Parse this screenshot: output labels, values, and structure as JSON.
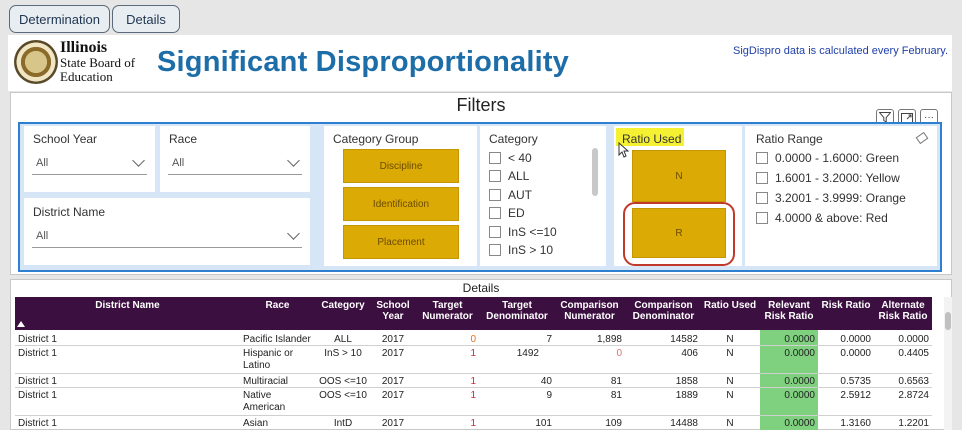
{
  "tabs": [
    "Determination",
    "Details"
  ],
  "header": {
    "logo_lines": [
      "Illinois",
      "State Board of",
      "Education"
    ],
    "title": "Significant Disproportionality",
    "note": "SigDispro data is calculated every February."
  },
  "filters": {
    "title": "Filters",
    "school_year": {
      "label": "School Year",
      "value": "All"
    },
    "race": {
      "label": "Race",
      "value": "All"
    },
    "district_name": {
      "label": "District Name",
      "value": "All"
    },
    "category_group": {
      "label": "Category Group",
      "buttons": [
        "Discipline",
        "Identification",
        "Placement"
      ]
    },
    "category": {
      "label": "Category",
      "options": [
        "< 40",
        "ALL",
        "AUT",
        "ED",
        "InS <=10",
        "InS > 10"
      ]
    },
    "ratio_used": {
      "label": "Ratio Used",
      "buttons": [
        "N",
        "R"
      ]
    },
    "ratio_range": {
      "label": "Ratio Range",
      "options": [
        "0.0000 - 1.6000: Green",
        "1.6001 - 3.2000: Yellow",
        "3.2001 - 3.9999: Orange",
        "4.0000 & above: Red"
      ]
    }
  },
  "details": {
    "title": "Details",
    "columns": [
      "District Name",
      "Race",
      "Category",
      "School Year",
      "Target Numerator",
      "Target Denominator",
      "Comparison Numerator",
      "Comparison Denominator",
      "Ratio Used",
      "Relevant Risk Ratio",
      "Risk Ratio",
      "Alternate Risk Ratio"
    ],
    "rows": [
      [
        "District 1",
        "Pacific Islander",
        "ALL",
        "2017",
        "0",
        "7",
        "1,898",
        "14582",
        "N",
        "0.0000",
        "0.0000",
        "0.0000"
      ],
      [
        "District 1",
        "Hispanic or Latino",
        "InS > 10",
        "2017",
        "1",
        "1492",
        "0",
        "406",
        "N",
        "0.0000",
        "0.0000",
        "0.4405"
      ],
      [
        "District 1",
        "Multiracial",
        "OOS <=10",
        "2017",
        "1",
        "40",
        "81",
        "1858",
        "N",
        "0.0000",
        "0.5735",
        "0.6563"
      ],
      [
        "District 1",
        "Native American",
        "OOS <=10",
        "2017",
        "1",
        "9",
        "81",
        "1889",
        "N",
        "0.0000",
        "2.5912",
        "2.8724"
      ],
      [
        "District 1",
        "Asian",
        "IntD",
        "2017",
        "1",
        "101",
        "109",
        "14488",
        "N",
        "0.0000",
        "1.3160",
        "1.2201"
      ]
    ]
  },
  "colors": {
    "accent": "#1d6da8",
    "header_bg": "#3b0f3f",
    "gold": "#dcaa05",
    "green": "#7fd07f",
    "highlight": "#f5f032",
    "circle": "#c0392b"
  }
}
